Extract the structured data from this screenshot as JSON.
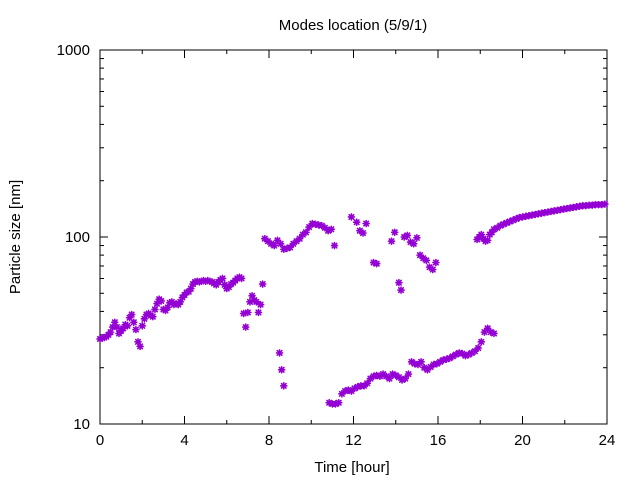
{
  "chart_data": {
    "type": "scatter",
    "title": "Modes location (5/9/1)",
    "xlabel": "Time [hour]",
    "ylabel": "Particle size [nm]",
    "xlim": [
      0,
      24
    ],
    "ylim": [
      10,
      1000
    ],
    "yscale": "log",
    "grid": false,
    "marker_color": "#9400d3",
    "x_ticks": [
      0,
      4,
      8,
      12,
      16,
      20,
      24
    ],
    "x_tick_labels": [
      "0",
      "4",
      "8",
      "12",
      "16",
      "20",
      "24"
    ],
    "y_ticks": [
      10,
      100,
      1000
    ],
    "y_tick_labels": [
      "10",
      "100",
      "1000"
    ],
    "series": [
      {
        "points": [
          [
            0.0,
            28.5
          ],
          [
            0.1,
            28.8
          ],
          [
            0.2,
            29
          ],
          [
            0.3,
            29.3
          ],
          [
            0.4,
            30
          ],
          [
            0.5,
            31
          ],
          [
            0.6,
            33
          ],
          [
            0.7,
            35
          ],
          [
            0.8,
            33
          ],
          [
            0.9,
            30.5
          ],
          [
            1.0,
            31.5
          ],
          [
            1.1,
            32.5
          ],
          [
            1.2,
            34
          ],
          [
            1.3,
            33.5
          ],
          [
            1.4,
            37
          ],
          [
            1.5,
            38.5
          ],
          [
            1.6,
            35
          ],
          [
            1.7,
            32
          ],
          [
            1.8,
            27.5
          ],
          [
            1.9,
            26
          ],
          [
            2.0,
            33.5
          ],
          [
            2.1,
            36.5
          ],
          [
            2.2,
            38.5
          ],
          [
            2.3,
            39
          ],
          [
            2.4,
            38
          ],
          [
            2.5,
            37.5
          ],
          [
            2.6,
            41
          ],
          [
            2.7,
            44
          ],
          [
            2.8,
            46.5
          ],
          [
            2.9,
            45.5
          ],
          [
            3.0,
            41
          ],
          [
            3.1,
            40.5
          ],
          [
            3.2,
            42
          ],
          [
            3.3,
            44.5
          ],
          [
            3.4,
            45
          ],
          [
            3.5,
            43.5
          ],
          [
            3.6,
            44
          ],
          [
            3.7,
            43.5
          ],
          [
            3.8,
            45
          ],
          [
            3.9,
            47.5
          ],
          [
            4.0,
            49
          ],
          [
            4.1,
            50.5
          ],
          [
            4.2,
            51
          ],
          [
            4.3,
            53
          ],
          [
            4.4,
            56
          ],
          [
            4.5,
            57.5
          ],
          [
            4.6,
            58
          ],
          [
            4.7,
            57.5
          ],
          [
            4.8,
            58
          ],
          [
            4.9,
            58.5
          ],
          [
            5.0,
            58
          ],
          [
            5.1,
            58.5
          ],
          [
            5.2,
            58
          ],
          [
            5.3,
            57.5
          ],
          [
            5.4,
            56.5
          ],
          [
            5.5,
            55.5
          ],
          [
            5.6,
            57.5
          ],
          [
            5.7,
            59
          ],
          [
            5.8,
            60
          ],
          [
            5.9,
            55.5
          ],
          [
            6.0,
            53
          ],
          [
            6.1,
            54
          ],
          [
            6.2,
            56
          ],
          [
            6.3,
            57
          ],
          [
            6.4,
            58.5
          ],
          [
            6.5,
            60
          ],
          [
            6.6,
            61
          ],
          [
            6.7,
            60
          ],
          [
            6.8,
            39
          ],
          [
            6.9,
            33
          ],
          [
            7.0,
            39.5
          ],
          [
            7.1,
            45
          ],
          [
            7.2,
            48.5
          ],
          [
            7.3,
            46
          ],
          [
            7.4,
            45
          ],
          [
            7.5,
            39.5
          ],
          [
            7.6,
            43.5
          ],
          [
            7.7,
            56
          ],
          [
            8.5,
            24
          ],
          [
            8.6,
            19.5
          ],
          [
            8.7,
            16
          ],
          [
            10.85,
            13
          ],
          [
            11.0,
            12.8
          ],
          [
            11.15,
            12.8
          ],
          [
            11.3,
            13
          ],
          [
            11.45,
            14.5
          ],
          [
            11.6,
            15
          ],
          [
            11.75,
            15.2
          ],
          [
            11.9,
            15
          ],
          [
            12.05,
            15.5
          ],
          [
            12.2,
            15.8
          ],
          [
            12.35,
            16
          ],
          [
            12.5,
            16
          ],
          [
            12.65,
            16.5
          ],
          [
            12.8,
            17.5
          ],
          [
            12.95,
            18
          ],
          [
            13.1,
            18.2
          ],
          [
            13.25,
            18
          ],
          [
            13.4,
            18.5
          ],
          [
            13.55,
            18
          ],
          [
            13.7,
            17.5
          ],
          [
            13.85,
            18.5
          ],
          [
            14.0,
            18.2
          ],
          [
            14.15,
            17.8
          ],
          [
            14.3,
            17.2
          ],
          [
            14.45,
            17.5
          ],
          [
            14.6,
            18.5
          ],
          [
            14.75,
            21.5
          ],
          [
            14.9,
            21
          ],
          [
            15.05,
            20.8
          ],
          [
            15.2,
            21.5
          ],
          [
            15.35,
            20
          ],
          [
            15.5,
            19.5
          ],
          [
            15.65,
            20.2
          ],
          [
            15.8,
            20.8
          ],
          [
            15.95,
            21
          ],
          [
            16.1,
            21.5
          ],
          [
            16.25,
            22
          ],
          [
            16.4,
            22.2
          ],
          [
            16.55,
            22.5
          ],
          [
            16.7,
            23
          ],
          [
            16.85,
            23.5
          ],
          [
            17.0,
            24
          ],
          [
            17.15,
            23.8
          ],
          [
            17.3,
            23.2
          ],
          [
            17.45,
            23.5
          ],
          [
            17.6,
            24
          ],
          [
            17.75,
            24.5
          ],
          [
            17.9,
            25.5
          ],
          [
            18.05,
            27.5
          ],
          [
            18.2,
            31
          ],
          [
            18.35,
            32.5
          ],
          [
            18.5,
            31
          ],
          [
            18.65,
            30.5
          ],
          [
            7.8,
            98
          ],
          [
            7.95,
            95
          ],
          [
            8.1,
            92
          ],
          [
            8.25,
            90
          ],
          [
            8.4,
            96
          ],
          [
            8.55,
            92
          ],
          [
            8.7,
            86
          ],
          [
            8.85,
            87
          ],
          [
            9.0,
            88
          ],
          [
            9.15,
            92
          ],
          [
            9.3,
            95
          ],
          [
            9.45,
            98
          ],
          [
            9.6,
            103
          ],
          [
            9.75,
            106
          ],
          [
            9.9,
            113
          ],
          [
            10.05,
            118
          ],
          [
            10.2,
            117
          ],
          [
            10.35,
            116
          ],
          [
            10.5,
            115
          ],
          [
            10.65,
            112
          ],
          [
            10.8,
            108
          ],
          [
            10.95,
            110
          ],
          [
            11.1,
            90
          ],
          [
            11.9,
            128
          ],
          [
            12.15,
            120
          ],
          [
            12.3,
            108
          ],
          [
            12.45,
            105
          ],
          [
            12.6,
            118
          ],
          [
            12.95,
            73
          ],
          [
            13.1,
            72
          ],
          [
            13.8,
            95
          ],
          [
            13.95,
            106
          ],
          [
            14.15,
            57
          ],
          [
            14.25,
            52
          ],
          [
            14.4,
            100
          ],
          [
            14.55,
            102
          ],
          [
            14.7,
            94
          ],
          [
            14.85,
            92
          ],
          [
            15.0,
            99
          ],
          [
            15.15,
            80
          ],
          [
            15.3,
            77
          ],
          [
            15.45,
            75
          ],
          [
            15.6,
            69
          ],
          [
            15.75,
            67
          ],
          [
            15.9,
            73
          ],
          [
            17.85,
            97
          ],
          [
            17.95,
            100
          ],
          [
            18.05,
            103
          ],
          [
            18.15,
            98
          ],
          [
            18.25,
            95
          ],
          [
            18.35,
            96
          ],
          [
            18.45,
            103
          ],
          [
            18.55,
            106
          ],
          [
            18.65,
            110
          ],
          [
            18.8,
            112
          ],
          [
            18.95,
            115
          ],
          [
            19.1,
            117
          ],
          [
            19.25,
            119
          ],
          [
            19.4,
            121
          ],
          [
            19.55,
            123
          ],
          [
            19.7,
            125
          ],
          [
            19.85,
            127
          ],
          [
            20.0,
            128
          ],
          [
            20.15,
            129
          ],
          [
            20.3,
            130
          ],
          [
            20.45,
            131
          ],
          [
            20.6,
            132
          ],
          [
            20.75,
            133
          ],
          [
            20.9,
            134
          ],
          [
            21.05,
            135
          ],
          [
            21.2,
            136
          ],
          [
            21.35,
            137
          ],
          [
            21.5,
            138
          ],
          [
            21.65,
            139
          ],
          [
            21.8,
            140
          ],
          [
            21.95,
            141
          ],
          [
            22.1,
            142
          ],
          [
            22.25,
            143
          ],
          [
            22.4,
            144
          ],
          [
            22.55,
            145
          ],
          [
            22.7,
            146
          ],
          [
            22.85,
            147
          ],
          [
            23.0,
            147
          ],
          [
            23.15,
            148
          ],
          [
            23.3,
            148
          ],
          [
            23.45,
            149
          ],
          [
            23.6,
            149
          ],
          [
            23.75,
            149
          ],
          [
            23.9,
            150
          ]
        ]
      }
    ]
  }
}
